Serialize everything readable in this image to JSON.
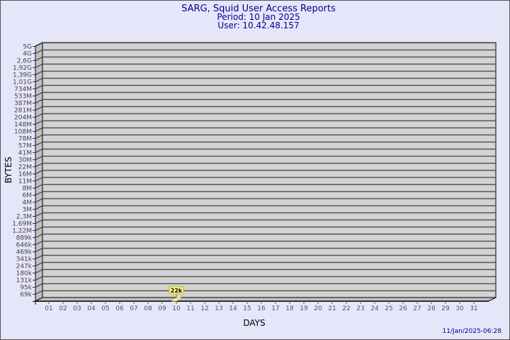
{
  "chart_data": {
    "type": "bar",
    "title": "SARG, Squid User Access Reports",
    "subtitle_period": "Period: 10 Jan 2025",
    "subtitle_user": "User: 10.42.48.157",
    "xlabel": "DAYS",
    "ylabel": "BYTES",
    "y_scale": "log",
    "y_tick_labels": [
      "5G",
      "4G",
      "2,6G",
      "1,92G",
      "1,39G",
      "1,01G",
      "734M",
      "533M",
      "387M",
      "281M",
      "204M",
      "148M",
      "108M",
      "78M",
      "57M",
      "41M",
      "30M",
      "22M",
      "16M",
      "11M",
      "8M",
      "6M",
      "4M",
      "3M",
      "2,3M",
      "1,69M",
      "1,22M",
      "889k",
      "646k",
      "469k",
      "341k",
      "247k",
      "180k",
      "131k",
      "95k",
      "69k"
    ],
    "categories": [
      "01",
      "02",
      "03",
      "04",
      "05",
      "06",
      "07",
      "08",
      "09",
      "10",
      "11",
      "12",
      "13",
      "14",
      "15",
      "16",
      "17",
      "18",
      "19",
      "20",
      "21",
      "22",
      "23",
      "24",
      "25",
      "26",
      "27",
      "28",
      "29",
      "30",
      "31"
    ],
    "bars": [
      {
        "category": "10",
        "value_label": "22k",
        "value": 22000
      }
    ],
    "grid": true,
    "bar_color": "#ffff99",
    "plot_color": "#d3d3d3",
    "background_color": "#e6e6fa",
    "text_color": "#00008b",
    "timestamp": "11/Jan/2025-06:28"
  }
}
